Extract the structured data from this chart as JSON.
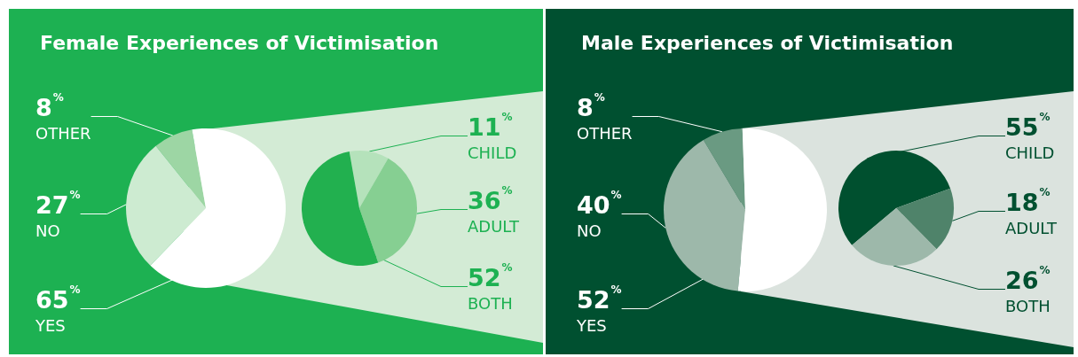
{
  "chart_data": [
    {
      "type": "pie",
      "title": "Female Experiences of Victimisation",
      "categories": [
        "OTHER",
        "NO",
        "YES"
      ],
      "values": [
        8,
        27,
        65
      ],
      "value_labels": [
        "8%",
        "27%",
        "65%"
      ],
      "colors": [
        "#9dd6a4",
        "#cdebd1",
        "#ffffff"
      ]
    },
    {
      "type": "pie",
      "categories": [
        "CHILD",
        "ADULT",
        "BOTH"
      ],
      "values": [
        11,
        36,
        52
      ],
      "value_labels": [
        "11%",
        "36%",
        "52%"
      ],
      "colors": [
        "#b5e2bb",
        "#86cf92",
        "#22b04f"
      ]
    },
    {
      "type": "pie",
      "title": "Male Experiences of Victimisation",
      "categories": [
        "OTHER",
        "NO",
        "YES"
      ],
      "values": [
        8,
        40,
        52
      ],
      "value_labels": [
        "8%",
        "40%",
        "52%"
      ],
      "colors": [
        "#6a9a82",
        "#9db8aa",
        "#ffffff"
      ]
    },
    {
      "type": "pie",
      "categories": [
        "CHILD",
        "ADULT",
        "BOTH"
      ],
      "values": [
        55,
        18,
        26
      ],
      "value_labels": [
        "55%",
        "18%",
        "26%"
      ],
      "colors": [
        "#00502f",
        "#4f836a",
        "#9db8aa"
      ]
    }
  ]
}
